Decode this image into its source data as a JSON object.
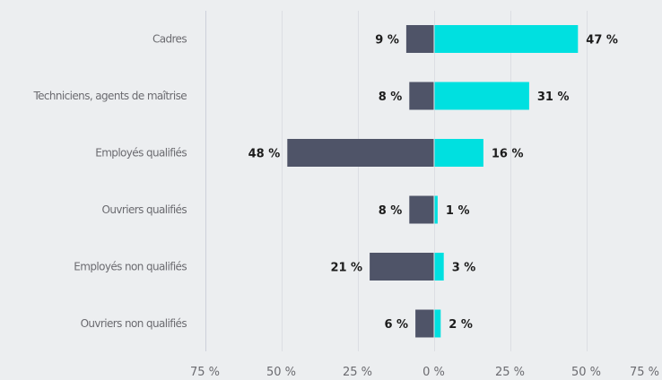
{
  "chart_data": {
    "type": "bar",
    "orientation": "horizontal-diverging",
    "title": "",
    "xlabel": "",
    "ylabel": "",
    "categories": [
      "Cadres",
      "Techniciens, agents de maîtrise",
      "Employés qualifiés",
      "Ouvriers qualifiés",
      "Employés non qualifiés",
      "Ouvriers non qualifiés"
    ],
    "series": [
      {
        "values": [
          9,
          8,
          48,
          8,
          21,
          6
        ],
        "color": "#4f5468",
        "direction": "left"
      },
      {
        "values": [
          47,
          31,
          16,
          1,
          3,
          2
        ],
        "color": "#00e0e0",
        "direction": "right"
      }
    ],
    "value_labels_left": [
      "9 %",
      "8 %",
      "48 %",
      "8 %",
      "21 %",
      "6 %"
    ],
    "value_labels_right": [
      "47 %",
      "31 %",
      "16 %",
      "1 %",
      "3 %",
      "2 %"
    ],
    "xlim": [
      -75,
      75
    ],
    "x_ticks": [
      -75,
      -50,
      -25,
      0,
      25,
      50,
      75
    ],
    "x_tick_labels": [
      "75 %",
      "50 %",
      "25 %",
      "0 %",
      "25 %",
      "50 %",
      "75 %"
    ],
    "grid": true,
    "legend": "none"
  }
}
